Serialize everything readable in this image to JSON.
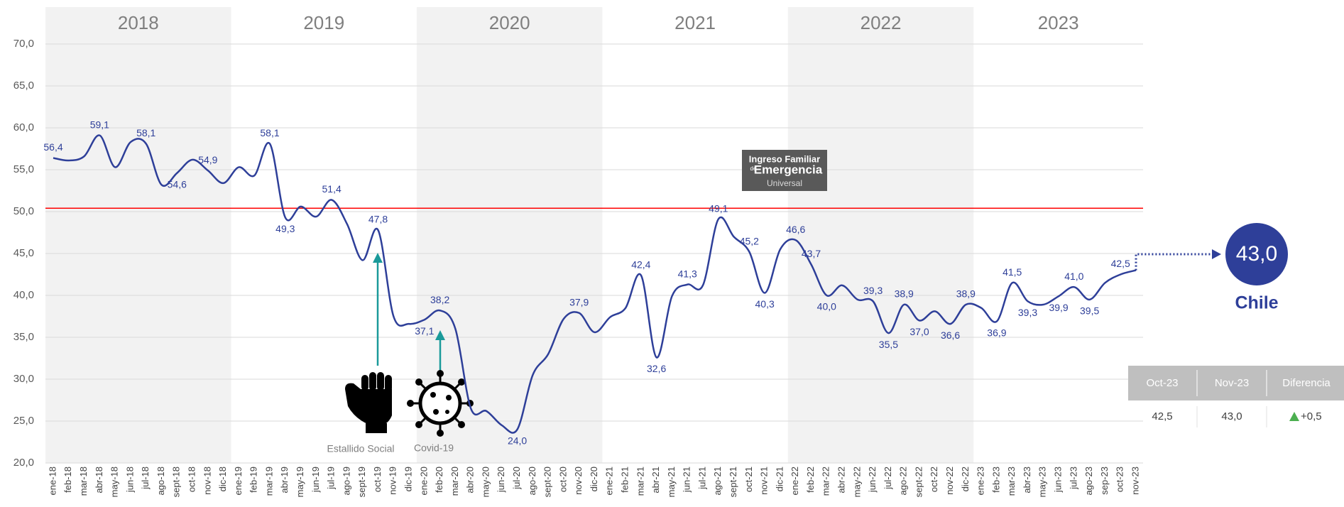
{
  "chart_data": {
    "type": "line",
    "categories": [
      "ene-18",
      "feb-18",
      "mar-18",
      "abr-18",
      "may-18",
      "jun-18",
      "jul-18",
      "ago-18",
      "sept-18",
      "oct-18",
      "nov-18",
      "dic-18",
      "ene-19",
      "feb-19",
      "mar-19",
      "abr-19",
      "may-19",
      "jun-19",
      "jul-19",
      "ago-19",
      "sept-19",
      "oct-19",
      "nov-19",
      "dic-19",
      "ene-20",
      "feb-20",
      "mar-20",
      "abr-20",
      "may-20",
      "jun-20",
      "jul-20",
      "ago-20",
      "sept-20",
      "oct-20",
      "nov-20",
      "dic-20",
      "ene-21",
      "feb-21",
      "mar-21",
      "abr-21",
      "may-21",
      "jun-21",
      "jul-21",
      "ago-21",
      "sept-21",
      "oct-21",
      "nov-21",
      "dic-21",
      "ene-22",
      "feb-22",
      "mar-22",
      "abr-22",
      "may-22",
      "jun-22",
      "jul-22",
      "ago-22",
      "sept-22",
      "oct-22",
      "nov-22",
      "dic-22",
      "ene-23",
      "feb-23",
      "mar-23",
      "abr-23",
      "may-23",
      "jun-23",
      "jul-23",
      "ago-23",
      "sep-23",
      "oct-23",
      "nov-23"
    ],
    "series": [
      {
        "name": "Chile",
        "color": "#2e3f99",
        "values": [
          56.4,
          56.1,
          56.6,
          59.1,
          55.3,
          58.3,
          58.1,
          53.2,
          54.6,
          56.2,
          54.9,
          53.4,
          55.3,
          54.3,
          58.1,
          49.3,
          50.6,
          49.4,
          51.4,
          48.5,
          44.2,
          47.8,
          37.5,
          36.6,
          37.1,
          38.2,
          36.0,
          26.5,
          26.2,
          24.5,
          24.0,
          30.5,
          33.0,
          37.2,
          37.9,
          35.6,
          37.4,
          38.5,
          42.4,
          32.6,
          39.9,
          41.3,
          41.2,
          49.1,
          47.0,
          45.2,
          40.3,
          45.5,
          46.6,
          43.7,
          40.0,
          41.2,
          39.5,
          39.3,
          35.5,
          38.9,
          37.0,
          38.1,
          36.6,
          38.9,
          38.5,
          36.9,
          41.5,
          39.3,
          38.9,
          39.9,
          41.0,
          39.5,
          41.5,
          42.5,
          43.0
        ],
        "value_labels": [
          "56,4",
          null,
          null,
          "59,1",
          null,
          null,
          "58,1",
          null,
          "54,6",
          null,
          "54,9",
          null,
          null,
          null,
          "58,1",
          "49,3",
          null,
          null,
          "51,4",
          null,
          null,
          "47,8",
          null,
          null,
          "37,1",
          "38,2",
          null,
          null,
          null,
          null,
          "24,0",
          null,
          null,
          null,
          "37,9",
          null,
          null,
          null,
          "42,4",
          "32,6",
          null,
          "41,3",
          null,
          "49,1",
          null,
          "45,2",
          "40,3",
          null,
          "46,6",
          "43,7",
          "40,0",
          null,
          null,
          "39,3",
          "35,5",
          "38,9",
          "37,0",
          null,
          "36,6",
          "38,9",
          null,
          "36,9",
          "41,5",
          "39,3",
          null,
          "39,9",
          "41,0",
          "39,5",
          null,
          "42,5",
          null
        ]
      }
    ],
    "ylim": [
      20,
      70
    ],
    "yticks": [
      {
        "value": 20,
        "label": "20,0"
      },
      {
        "value": 25,
        "label": "25,0"
      },
      {
        "value": 30,
        "label": "30,0"
      },
      {
        "value": 35,
        "label": "35,0"
      },
      {
        "value": 40,
        "label": "40,0"
      },
      {
        "value": 45,
        "label": "45,0"
      },
      {
        "value": 50,
        "label": "50,0"
      },
      {
        "value": 55,
        "label": "55,0"
      },
      {
        "value": 60,
        "label": "60,0"
      },
      {
        "value": 65,
        "label": "65,0"
      },
      {
        "value": 70,
        "label": "70,0"
      }
    ],
    "grid": true,
    "reference_line": {
      "value": 50.4,
      "color": "#ff0000"
    },
    "year_bands": [
      {
        "label": "2018",
        "shaded": true
      },
      {
        "label": "2019",
        "shaded": false
      },
      {
        "label": "2020",
        "shaded": true
      },
      {
        "label": "2021",
        "shaded": false
      },
      {
        "label": "2022",
        "shaded": true
      },
      {
        "label": "2023",
        "shaded": false
      }
    ],
    "annotations": [
      {
        "text": "Estallido Social"
      },
      {
        "text": "Covid-19"
      }
    ],
    "logo": {
      "lines": [
        "Ingreso Familiar",
        "de",
        "Emergencia",
        "Universal"
      ]
    },
    "summary": {
      "value_label": "43,0",
      "table": {
        "header": [
          "Oct-23",
          "Nov-23",
          "Diferencia"
        ],
        "row": [
          "42,5",
          "43,0",
          "+0,5"
        ]
      }
    }
  }
}
